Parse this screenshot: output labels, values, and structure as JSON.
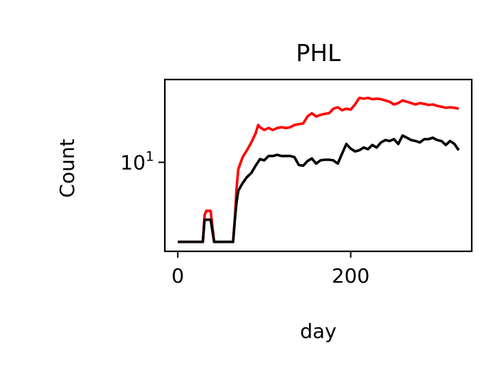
{
  "chart_data": {
    "type": "line",
    "title": "PHL",
    "xlabel": "day",
    "ylabel": "Count",
    "xlim": [
      -15,
      340
    ],
    "ylim": [
      2.6,
      35
    ],
    "yscale": "log",
    "grid": false,
    "x_ticks": [
      {
        "value": 0,
        "label": "0"
      },
      {
        "value": 200,
        "label": "200"
      }
    ],
    "y_ticks": [
      {
        "value": 10,
        "base": "10",
        "exponent": "1"
      }
    ],
    "series": [
      {
        "color": "#ff0000",
        "x": [
          0,
          10,
          20,
          25,
          29,
          31,
          33,
          38,
          42,
          45,
          50,
          55,
          60,
          64,
          66,
          68,
          70,
          75,
          80,
          85,
          90,
          93,
          95,
          100,
          105,
          110,
          115,
          120,
          125,
          130,
          135,
          140,
          145,
          150,
          155,
          160,
          165,
          170,
          175,
          180,
          185,
          190,
          195,
          200,
          205,
          210,
          215,
          220,
          225,
          230,
          235,
          240,
          245,
          250,
          255,
          260,
          265,
          270,
          275,
          280,
          285,
          290,
          295,
          300,
          305,
          310,
          315,
          320,
          325
        ],
        "y": [
          3.0,
          3.0,
          3.0,
          3.0,
          3.0,
          4.5,
          4.8,
          4.8,
          3.0,
          3.0,
          3.0,
          3.0,
          3.0,
          3.0,
          4.3,
          6.8,
          9.0,
          10.8,
          12.0,
          13.5,
          15.5,
          17.6,
          17.0,
          16.3,
          16.8,
          16.3,
          16.8,
          17.0,
          16.8,
          17.0,
          17.6,
          17.8,
          18.0,
          20.0,
          21.0,
          20.0,
          20.5,
          20.8,
          21.0,
          22.5,
          23.0,
          22.0,
          22.5,
          22.2,
          24.0,
          26.5,
          26.2,
          26.5,
          26.0,
          26.2,
          26.0,
          25.5,
          25.0,
          24.0,
          24.5,
          25.5,
          25.0,
          24.5,
          24.0,
          24.5,
          24.2,
          23.8,
          24.0,
          23.5,
          23.2,
          22.8,
          23.0,
          22.8,
          22.5
        ]
      },
      {
        "color": "#000000",
        "x": [
          0,
          10,
          20,
          25,
          29,
          31,
          33,
          38,
          42,
          45,
          50,
          55,
          60,
          64,
          66,
          68,
          70,
          75,
          80,
          85,
          90,
          95,
          100,
          105,
          110,
          115,
          120,
          125,
          130,
          135,
          140,
          145,
          150,
          155,
          160,
          165,
          170,
          175,
          180,
          185,
          190,
          195,
          200,
          205,
          210,
          215,
          220,
          225,
          230,
          235,
          240,
          245,
          250,
          255,
          260,
          265,
          270,
          275,
          280,
          285,
          290,
          295,
          300,
          305,
          310,
          315,
          320,
          325
        ],
        "y": [
          3.0,
          3.0,
          3.0,
          3.0,
          3.0,
          4.2,
          4.2,
          4.2,
          3.0,
          3.0,
          3.0,
          3.0,
          3.0,
          3.0,
          4.2,
          5.5,
          6.5,
          7.3,
          8.0,
          8.5,
          9.5,
          10.5,
          10.3,
          11.0,
          11.0,
          11.2,
          11.0,
          11.0,
          11.0,
          10.8,
          9.6,
          9.5,
          10.2,
          10.6,
          9.8,
          10.3,
          10.4,
          10.4,
          10.3,
          9.8,
          11.4,
          13.2,
          12.3,
          11.8,
          12.0,
          12.5,
          12.2,
          13.0,
          12.5,
          13.5,
          14.0,
          13.8,
          14.2,
          13.2,
          15.0,
          14.5,
          14.0,
          13.8,
          13.5,
          14.2,
          14.2,
          14.5,
          14.0,
          13.8,
          13.0,
          13.8,
          13.2,
          12.0
        ]
      }
    ]
  }
}
